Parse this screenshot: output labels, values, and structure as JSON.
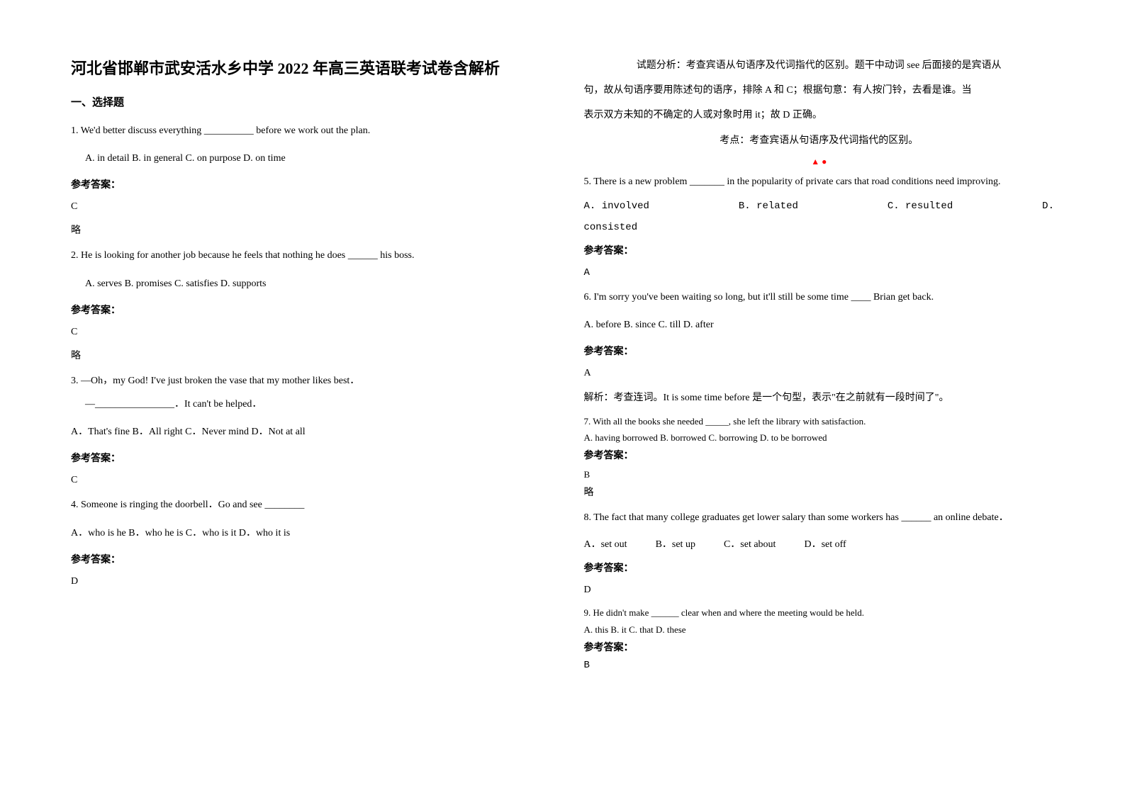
{
  "title": "河北省邯郸市武安活水乡中学 2022 年高三英语联考试卷含解析",
  "section_heading": "一、选择题",
  "left": {
    "q1": {
      "stem": "1. We'd better discuss everything __________ before we work out the plan.",
      "options": "A. in detail            B. in general            C. on purpose        D. on time",
      "answer_label": "参考答案：",
      "answer": "C",
      "extra": "略"
    },
    "q2": {
      "stem": "2. He is looking for another job because he feels that nothing he does ______ his boss.",
      "options": "A. serves      B. promises     C. satisfies     D. supports",
      "answer_label": "参考答案：",
      "answer": "C",
      "extra": "略"
    },
    "q3": {
      "stem": "3. —Oh，my God! I've just broken the vase that my mother likes best．",
      "line2": "—________________．It can't be helped．",
      "options": "A．That's fine   B．All right   C．Never mind     D．Not at all",
      "answer_label": "参考答案：",
      "answer": "C"
    },
    "q4": {
      "stem": "4. Someone is ringing the doorbell．Go and see ________",
      "options": "A．who is he  B．who he is  C．who is it D．who it is",
      "answer_label": "参考答案：",
      "answer": "D"
    }
  },
  "right": {
    "analysis_top": {
      "line1": "试题分析：考查宾语从句语序及代词指代的区别。题干中动词 see 后面接的是宾语从",
      "line2": "句，故从句语序要用陈述句的语序，排除 A 和 C；根据句意：有人按门铃，去看是谁。当",
      "line3": "表示双方未知的不确定的人或对象时用 it；故 D 正确。",
      "line4": "考点：考查宾语从句语序及代词指代的区别。"
    },
    "red_mark": "▲  ●",
    "q5": {
      "stem": "5. There is a new problem _______ in the popularity of private cars that road conditions need improving.",
      "opt_a": "A.  involved",
      "opt_b": "B.  related",
      "opt_c": "C.  resulted",
      "opt_d": "D.",
      "opt_d2": "consisted",
      "answer_label": "参考答案：",
      "answer": "A"
    },
    "q6": {
      "stem": "6.  I'm sorry you've been waiting so long, but it'll still be some time ____ Brian get back.",
      "options": "A. before    B. since    C. till    D. after",
      "answer_label": "参考答案：",
      "answer": " A",
      "analysis": "解析：考查连词。It is some time before 是一个句型，表示\"在之前就有一段时间了\"。"
    },
    "q7": {
      "stem": "7. With all the books she needed _____, she left the library with satisfaction.",
      "options": " A. having borrowed B. borrowed    C. borrowing   D. to be borrowed",
      "answer_label": "参考答案：",
      "answer": "B",
      "extra": "略"
    },
    "q8": {
      "stem": "8. The fact that many college graduates get lower salary than some workers has ______ an online debate．",
      "opt_a": "A．set out",
      "opt_b": "B．set up",
      "opt_c": "C．set about",
      "opt_d": "D．set off",
      "answer_label": "参考答案：",
      "answer": "D"
    },
    "q9": {
      "stem": "9. He didn't make ______ clear when and where the meeting would be held.",
      "options": "A. this      B. it    C. that      D. these",
      "answer_label": "参考答案：",
      "answer": "B"
    }
  }
}
